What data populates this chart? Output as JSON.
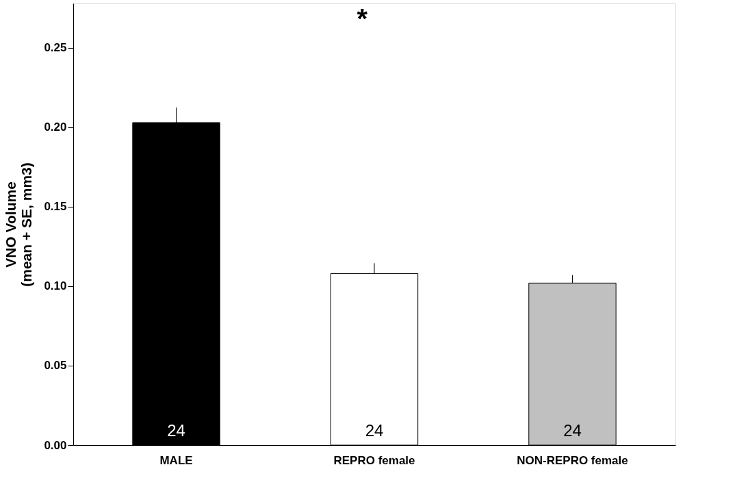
{
  "chart_data": {
    "type": "bar",
    "ylabel": "VNO Volume\n(mean + SE, mm3)",
    "categories": [
      "MALE",
      "REPRO female",
      "NON-REPRO female"
    ],
    "values": [
      0.203,
      0.108,
      0.102
    ],
    "errors": [
      0.0095,
      0.0065,
      0.005
    ],
    "colors": [
      "#000000",
      "#ffffff",
      "#c0c0c0"
    ],
    "ylim": [
      0,
      0.278
    ],
    "yticks": [
      {
        "value": 0,
        "label": "0.00"
      },
      {
        "value": 0.05,
        "label": "0.05"
      },
      {
        "value": 0.1,
        "label": "0.10"
      },
      {
        "value": 0.15,
        "label": "0.15"
      },
      {
        "value": 0.2,
        "label": "0.20"
      },
      {
        "value": 0.25,
        "label": "0.25"
      }
    ],
    "grid": false,
    "annotations": [
      "24",
      "24",
      "24",
      "*"
    ]
  }
}
